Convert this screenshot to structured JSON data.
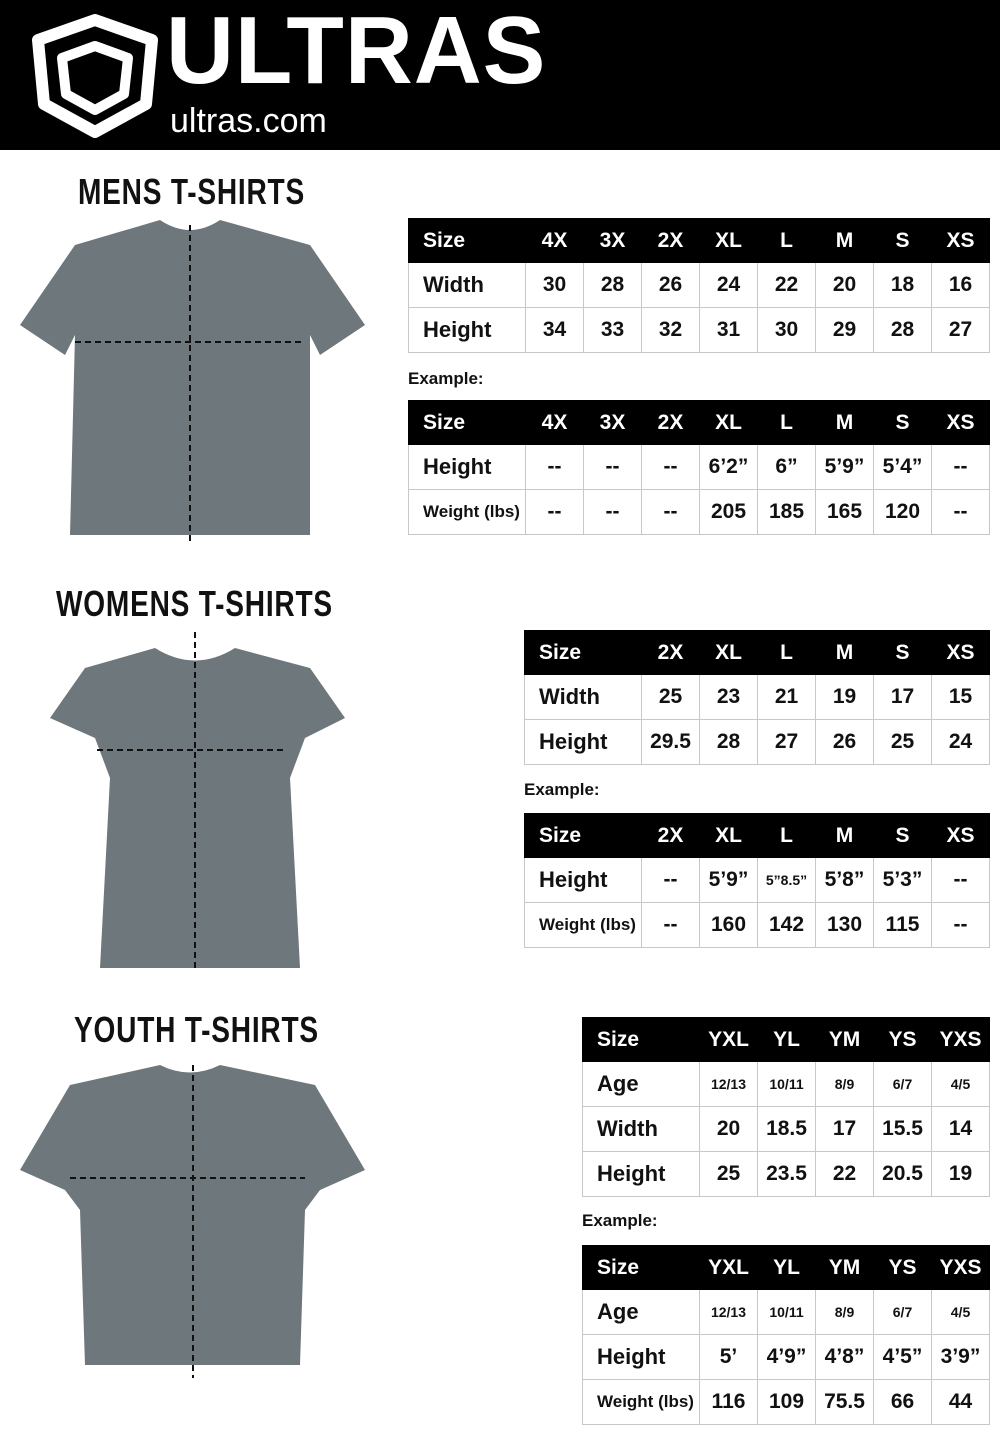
{
  "header": {
    "brand": "ULTRAS",
    "url": "ultras.com"
  },
  "example_label": "Example:",
  "sections": [
    {
      "id": "mens",
      "title": "MENS  T-SHIRTS",
      "size_table": {
        "headers": [
          "Size",
          "4X",
          "3X",
          "2X",
          "XL",
          "L",
          "M",
          "S",
          "XS"
        ],
        "rows": [
          [
            "Width",
            "30",
            "28",
            "26",
            "24",
            "22",
            "20",
            "18",
            "16"
          ],
          [
            "Height",
            "34",
            "33",
            "32",
            "31",
            "30",
            "29",
            "28",
            "27"
          ]
        ]
      },
      "example_table": {
        "headers": [
          "Size",
          "4X",
          "3X",
          "2X",
          "XL",
          "L",
          "M",
          "S",
          "XS"
        ],
        "rows": [
          [
            "Height",
            "--",
            "--",
            "--",
            "6’2”",
            "6”",
            "5’9”",
            "5’4”",
            "--"
          ],
          [
            "Weight (lbs)",
            "--",
            "--",
            "--",
            "205",
            "185",
            "165",
            "120",
            "--"
          ]
        ]
      }
    },
    {
      "id": "womens",
      "title": "WOMENS  T-SHIRTS",
      "size_table": {
        "headers": [
          "Size",
          "2X",
          "XL",
          "L",
          "M",
          "S",
          "XS"
        ],
        "rows": [
          [
            "Width",
            "25",
            "23",
            "21",
            "19",
            "17",
            "15"
          ],
          [
            "Height",
            "29.5",
            "28",
            "27",
            "26",
            "25",
            "24"
          ]
        ]
      },
      "example_table": {
        "headers": [
          "Size",
          "2X",
          "XL",
          "L",
          "M",
          "S",
          "XS"
        ],
        "rows": [
          [
            "Height",
            "--",
            "5’9”",
            "5”8.5”",
            "5’8”",
            "5’3”",
            "--"
          ],
          [
            "Weight (lbs)",
            "--",
            "160",
            "142",
            "130",
            "115",
            "--"
          ]
        ]
      }
    },
    {
      "id": "youth",
      "title": "YOUTH  T-SHIRTS",
      "size_table": {
        "headers": [
          "Size",
          "YXL",
          "YL",
          "YM",
          "YS",
          "YXS"
        ],
        "rows": [
          [
            "Age",
            "12/13",
            "10/11",
            "8/9",
            "6/7",
            "4/5"
          ],
          [
            "Width",
            "20",
            "18.5",
            "17",
            "15.5",
            "14"
          ],
          [
            "Height",
            "25",
            "23.5",
            "22",
            "20.5",
            "19"
          ]
        ]
      },
      "example_table": {
        "headers": [
          "Size",
          "YXL",
          "YL",
          "YM",
          "YS",
          "YXS"
        ],
        "rows": [
          [
            "Age",
            "12/13",
            "10/11",
            "8/9",
            "6/7",
            "4/5"
          ],
          [
            "Height",
            "5’",
            "4’9”",
            "4’8”",
            "4’5”",
            "3’9”"
          ],
          [
            "Weight (lbs)",
            "116",
            "109",
            "75.5",
            "66",
            "44"
          ]
        ]
      }
    }
  ],
  "colors": {
    "header_bg": "#000000",
    "shirt": "#6e777b"
  }
}
